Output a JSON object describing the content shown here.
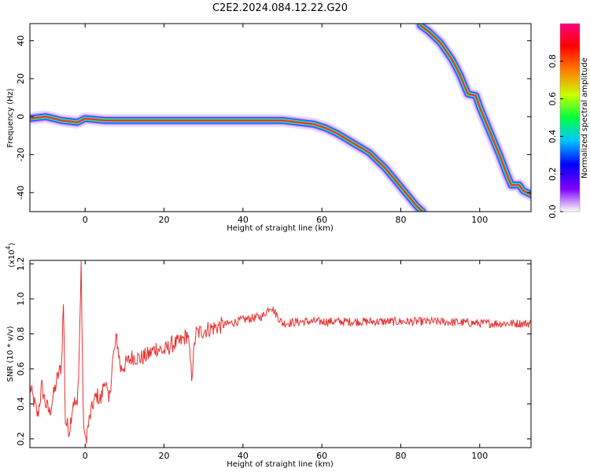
{
  "title": "C2E2.2024.084.12.22.G20",
  "chart_data": [
    {
      "type": "heatmap",
      "xlabel": "Height of straight line (km)",
      "ylabel": "Frequency (Hz)",
      "xlim": [
        -14,
        113
      ],
      "ylim": [
        -50,
        49
      ],
      "xticks": [
        0,
        20,
        40,
        60,
        80,
        100
      ],
      "yticks": [
        -40,
        -20,
        0,
        20,
        40
      ],
      "colorbar": {
        "label": "Normalized spectral amplitude",
        "range": [
          0,
          1
        ],
        "ticks": [
          "0.0",
          "0.2",
          "0.4",
          "0.6",
          "0.8"
        ],
        "colors": [
          "#ffffff",
          "#8000ff",
          "#0000ff",
          "#00c8ff",
          "#00ff40",
          "#c8ff00",
          "#ff8000",
          "#ff0000",
          "#ff0080"
        ]
      },
      "traces": [
        {
          "name": "",
          "points": [
            [
              -14,
              -1
            ],
            [
              -10,
              0
            ],
            [
              -6,
              -2
            ],
            [
              -2,
              -3
            ],
            [
              0,
              -1
            ],
            [
              5,
              -2
            ],
            [
              10,
              -2
            ],
            [
              20,
              -2
            ],
            [
              30,
              -2
            ],
            [
              40,
              -2
            ],
            [
              50,
              -2
            ],
            [
              54,
              -3
            ],
            [
              58,
              -4
            ],
            [
              61,
              -6
            ],
            [
              64,
              -9
            ],
            [
              68,
              -14
            ],
            [
              72,
              -19
            ],
            [
              76,
              -27
            ],
            [
              80,
              -37
            ],
            [
              84,
              -47
            ],
            [
              85.5,
              -50
            ]
          ]
        },
        {
          "name": "",
          "points": [
            [
              85,
              48
            ],
            [
              87,
              45
            ],
            [
              90,
              39
            ],
            [
              93,
              30
            ],
            [
              95,
              22
            ],
            [
              97,
              12
            ],
            [
              99,
              11
            ],
            [
              100,
              5
            ],
            [
              101,
              0
            ],
            [
              103,
              -10
            ],
            [
              105,
              -20
            ],
            [
              107,
              -31
            ],
            [
              108,
              -36
            ],
            [
              110,
              -36
            ],
            [
              111,
              -39
            ],
            [
              113,
              -41
            ]
          ]
        }
      ]
    },
    {
      "type": "line",
      "xlabel": "Height of straight line (km)",
      "ylabel": "SNR (10 * v/v)",
      "yscale_label": "(x10",
      "yscale_exponent": "4",
      "yscale_suffix": ")",
      "xlim": [
        -14,
        113
      ],
      "ylim": [
        0.15,
        1.22
      ],
      "xticks": [
        0,
        20,
        40,
        60,
        80,
        100
      ],
      "yticks": [
        "0.2",
        "0.4",
        "0.6",
        "0.8",
        "1.0",
        "1.2"
      ],
      "ytick_values": [
        0.2,
        0.4,
        0.6,
        0.8,
        1.0,
        1.2
      ],
      "color": "#e83030",
      "x": [
        -14,
        -12,
        -11,
        -10,
        -9,
        -8,
        -7,
        -6,
        -5.5,
        -5,
        -4,
        -3,
        -2,
        -1.5,
        -1,
        -0.5,
        0,
        1,
        2,
        3,
        4,
        5,
        6,
        7,
        8,
        9,
        10,
        12,
        14,
        16,
        18,
        20,
        22,
        24,
        26,
        27,
        28,
        30,
        35,
        40,
        45,
        47,
        50,
        55,
        60,
        70,
        80,
        90,
        100,
        110,
        113
      ],
      "y": [
        0.5,
        0.33,
        0.5,
        0.4,
        0.35,
        0.45,
        0.55,
        0.62,
        0.98,
        0.3,
        0.25,
        0.42,
        0.38,
        0.7,
        1.2,
        0.35,
        0.18,
        0.3,
        0.4,
        0.45,
        0.42,
        0.55,
        0.4,
        0.65,
        0.78,
        0.6,
        0.62,
        0.67,
        0.66,
        0.68,
        0.72,
        0.7,
        0.74,
        0.75,
        0.8,
        0.56,
        0.8,
        0.82,
        0.85,
        0.88,
        0.9,
        0.96,
        0.86,
        0.87,
        0.87,
        0.87,
        0.87,
        0.87,
        0.86,
        0.86,
        0.86
      ]
    }
  ]
}
